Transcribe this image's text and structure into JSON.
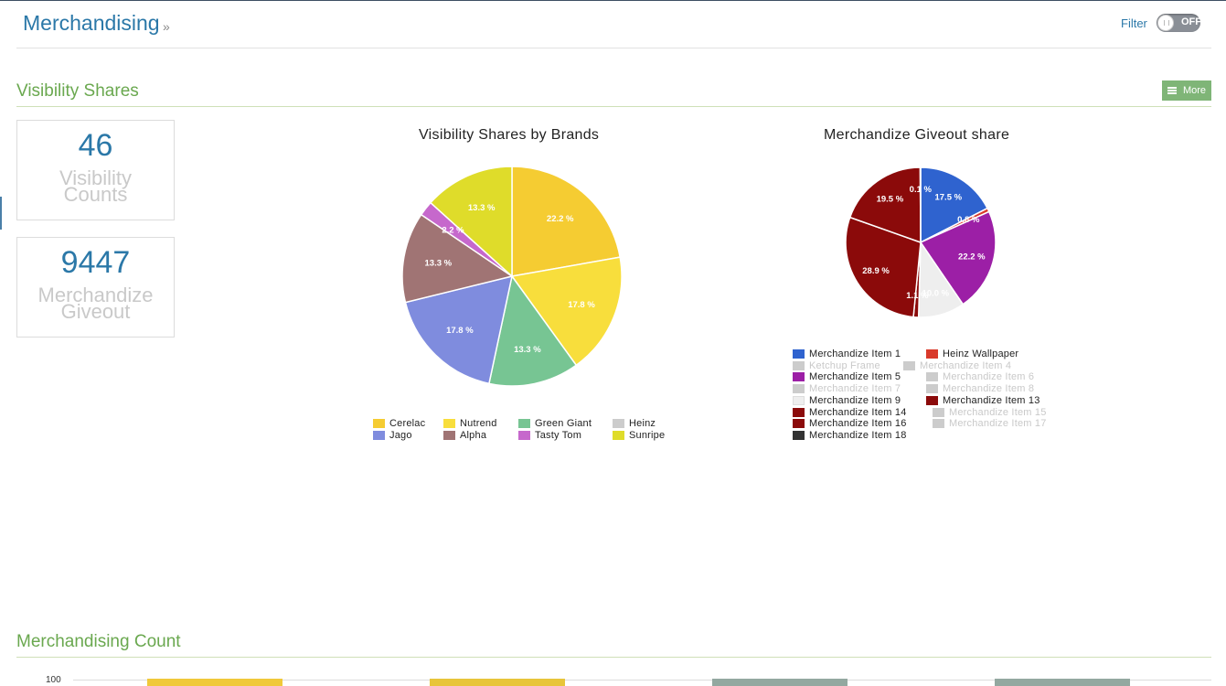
{
  "header": {
    "title": "Merchandising",
    "chevron": "»",
    "filter_label": "Filter",
    "filter_state": "OFF"
  },
  "sections": {
    "visibility_title": "Visibility Shares",
    "more_label": "More",
    "count_title": "Merchandising Count"
  },
  "stats": [
    {
      "value": "46",
      "label_line1": "Visibility",
      "label_line2": "Counts"
    },
    {
      "value": "9447",
      "label_line1": "Merchandize",
      "label_line2": "Giveout"
    }
  ],
  "chart_data": [
    {
      "type": "pie",
      "title": "Visibility Shares by Brands",
      "slices": [
        {
          "name": "Cerelac",
          "value": 22.2,
          "label": "22.2 %",
          "color": "#f5cc32"
        },
        {
          "name": "Nutrend",
          "value": 17.8,
          "label": "17.8 %",
          "color": "#f8de3c"
        },
        {
          "name": "Green Giant",
          "value": 13.3,
          "label": "13.3 %",
          "color": "#77c593"
        },
        {
          "name": "Heinz",
          "value": 0,
          "label": "",
          "color": "#cccccc"
        },
        {
          "name": "Jago",
          "value": 17.8,
          "label": "17.8 %",
          "color": "#7f8cde"
        },
        {
          "name": "Alpha",
          "value": 13.3,
          "label": "13.3 %",
          "color": "#a07474"
        },
        {
          "name": "Tasty Tom",
          "value": 2.2,
          "label": "2.2 %",
          "color": "#c668cc"
        },
        {
          "name": "Sunripe",
          "value": 13.3,
          "label": "13.3 %",
          "color": "#dfdc2a"
        }
      ],
      "legend": [
        {
          "name": "Cerelac",
          "color": "#f5cc32"
        },
        {
          "name": "Nutrend",
          "color": "#f8de3c"
        },
        {
          "name": "Green Giant",
          "color": "#77c593"
        },
        {
          "name": "Heinz",
          "color": "#cccccc"
        },
        {
          "name": "Jago",
          "color": "#7f8cde"
        },
        {
          "name": "Alpha",
          "color": "#a07474"
        },
        {
          "name": "Tasty Tom",
          "color": "#c668cc"
        },
        {
          "name": "Sunripe",
          "color": "#dfdc2a"
        }
      ]
    },
    {
      "type": "pie",
      "title": "Merchandize Giveout share",
      "slices": [
        {
          "name": "Merchandize Item 1",
          "value": 17.5,
          "label": "17.5 %",
          "color": "#2f63cf"
        },
        {
          "name": "Heinz Wallpaper",
          "value": 0.8,
          "label": "0.8 %",
          "color": "#d93a2b"
        },
        {
          "name": "Merchandize Item 5",
          "value": 22.2,
          "label": "22.2 %",
          "color": "#9c1fa6"
        },
        {
          "name": "Merchandize Item 9",
          "value": 10.0,
          "label": "10.0 %",
          "color": "#eeeeee"
        },
        {
          "name": "Merchandize Item 14",
          "value": 1.1,
          "label": "1.1 %",
          "color": "#8b0a0a"
        },
        {
          "name": "Merchandize Item 13",
          "value": 28.9,
          "label": "28.9 %",
          "color": "#8b0a0a"
        },
        {
          "name": "Merchandize Item 16",
          "value": 19.5,
          "label": "19.5 %",
          "color": "#8b0a0a"
        },
        {
          "name": "Merchandize Item 18",
          "value": 0.1,
          "label": "0.1 %",
          "color": "#8b0a0a"
        }
      ],
      "legend": [
        {
          "name": "Merchandize Item 1",
          "color": "#2f63cf",
          "active": true
        },
        {
          "name": "Heinz Wallpaper",
          "color": "#d93a2b",
          "active": true
        },
        {
          "name": "Ketchup Frame",
          "color": "#cccccc",
          "active": false
        },
        {
          "name": "Merchandize Item 4",
          "color": "#cccccc",
          "active": false
        },
        {
          "name": "Merchandize Item 5",
          "color": "#9c1fa6",
          "active": true
        },
        {
          "name": "Merchandize Item 6",
          "color": "#cccccc",
          "active": false
        },
        {
          "name": "Merchandize Item 7",
          "color": "#cccccc",
          "active": false
        },
        {
          "name": "Merchandize Item 8",
          "color": "#cccccc",
          "active": false
        },
        {
          "name": "Merchandize Item 9",
          "color": "#eeeeee",
          "active": true
        },
        {
          "name": "Merchandize Item 13",
          "color": "#8b0a0a",
          "active": true
        },
        {
          "name": "Merchandize Item 14",
          "color": "#8b0a0a",
          "active": true
        },
        {
          "name": "Merchandize Item 15",
          "color": "#cccccc",
          "active": false
        },
        {
          "name": "Merchandize Item 16",
          "color": "#8b0a0a",
          "active": true
        },
        {
          "name": "Merchandize Item 17",
          "color": "#cccccc",
          "active": false
        },
        {
          "name": "Merchandize Item 18",
          "color": "#333333",
          "active": true
        }
      ]
    },
    {
      "type": "bar",
      "title": "",
      "ytick_top": "100",
      "bar_colors": [
        "#f0c93a",
        "#e8c53a",
        "#93a8a0",
        "#93a8a0"
      ]
    }
  ]
}
